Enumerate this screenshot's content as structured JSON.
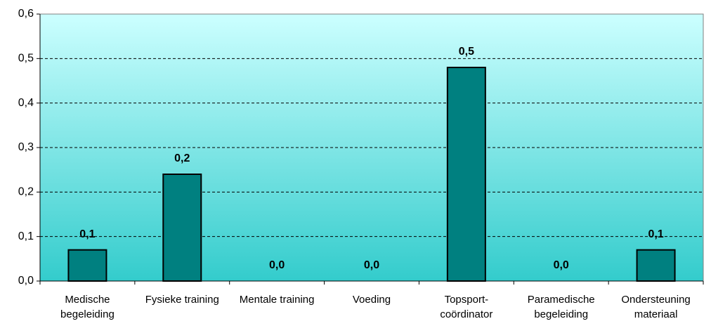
{
  "chart_data": {
    "type": "bar",
    "categories": [
      "Medische\nbegeleiding",
      "Fysieke training",
      "Mentale training",
      "Voeding",
      "Topsport-\ncoördinator",
      "Paramedische\nbegeleiding",
      "Ondersteuning\nmateriaal"
    ],
    "values": [
      0.07,
      0.24,
      0,
      0,
      0.48,
      0,
      0.07
    ],
    "value_labels": [
      "0,1",
      "0,2",
      "0,0",
      "0,0",
      "0,5",
      "0,0",
      "0,1"
    ],
    "color": "#008080",
    "ylim": [
      0,
      0.6
    ],
    "yticks": [
      {
        "value": 0,
        "label": "0,0"
      },
      {
        "value": 0.1,
        "label": "0,1"
      },
      {
        "value": 0.2,
        "label": "0,2"
      },
      {
        "value": 0.3,
        "label": "0,3"
      },
      {
        "value": 0.4,
        "label": "0,4"
      },
      {
        "value": 0.5,
        "label": "0,5"
      },
      {
        "value": 0.6,
        "label": "0,6"
      }
    ],
    "grid": true
  }
}
